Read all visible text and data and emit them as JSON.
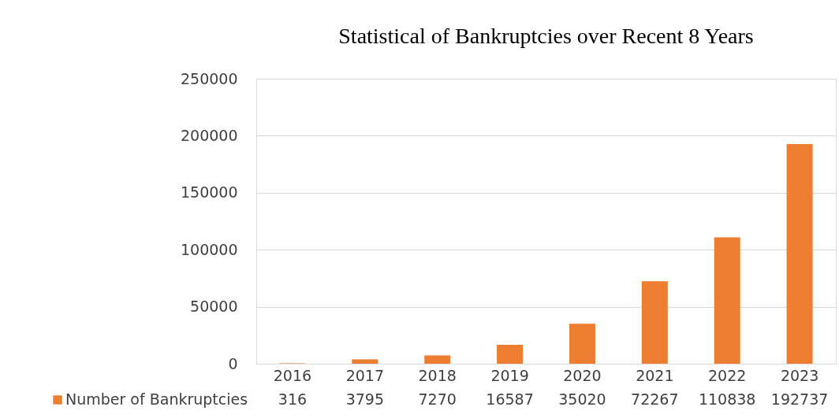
{
  "chart_data": {
    "type": "bar",
    "title": "Statistical of Bankruptcies over Recent 8 Years",
    "categories": [
      "2016",
      "2017",
      "2018",
      "2019",
      "2020",
      "2021",
      "2022",
      "2023"
    ],
    "series": [
      {
        "name": "Number of Bankruptcies",
        "color": "#ed7d31",
        "values": [
          316,
          3795,
          7270,
          16587,
          35020,
          72267,
          110838,
          192737
        ]
      }
    ],
    "ylim": [
      0,
      250000
    ],
    "yticks": [
      0,
      50000,
      100000,
      150000,
      200000,
      250000
    ],
    "grid": "y",
    "legend": "bottom",
    "data_labels": true
  }
}
